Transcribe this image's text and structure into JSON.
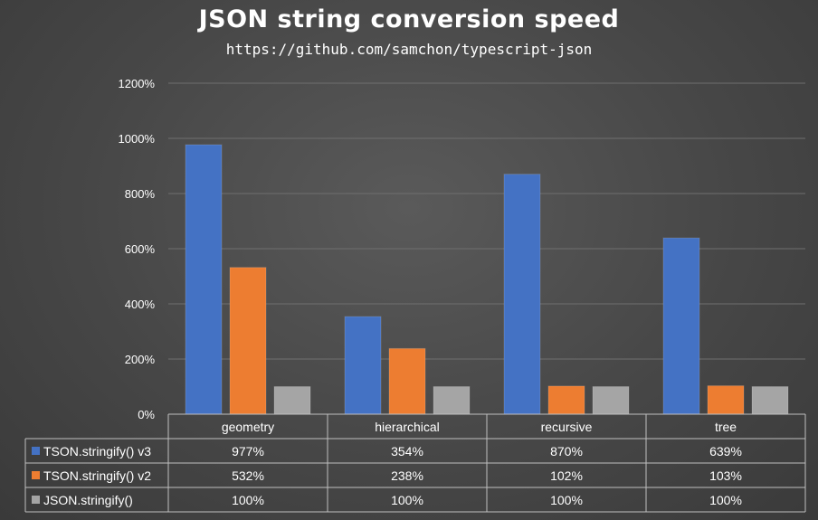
{
  "chart_data": {
    "type": "bar",
    "title": "JSON string conversion speed",
    "subtitle": "https://github.com/samchon/typescript-json",
    "categories": [
      "geometry",
      "hierarchical",
      "recursive",
      "tree"
    ],
    "series": [
      {
        "name": "TSON.stringify() v3",
        "values": [
          977,
          354,
          870,
          639
        ],
        "labels": [
          "977%",
          "354%",
          "870%",
          "639%"
        ],
        "color": "#4472c4"
      },
      {
        "name": "TSON.stringify() v2",
        "values": [
          532,
          238,
          102,
          103
        ],
        "labels": [
          "532%",
          "238%",
          "102%",
          "103%"
        ],
        "color": "#ed7d31"
      },
      {
        "name": "JSON.stringify()",
        "values": [
          100,
          100,
          100,
          100
        ],
        "labels": [
          "100%",
          "100%",
          "100%",
          "100%"
        ],
        "color": "#a5a5a5"
      }
    ],
    "yticks": [
      "0%",
      "200%",
      "400%",
      "600%",
      "800%",
      "1000%",
      "1200%"
    ],
    "ylim": [
      0,
      1200
    ],
    "grid": true,
    "legend": "data-table"
  }
}
